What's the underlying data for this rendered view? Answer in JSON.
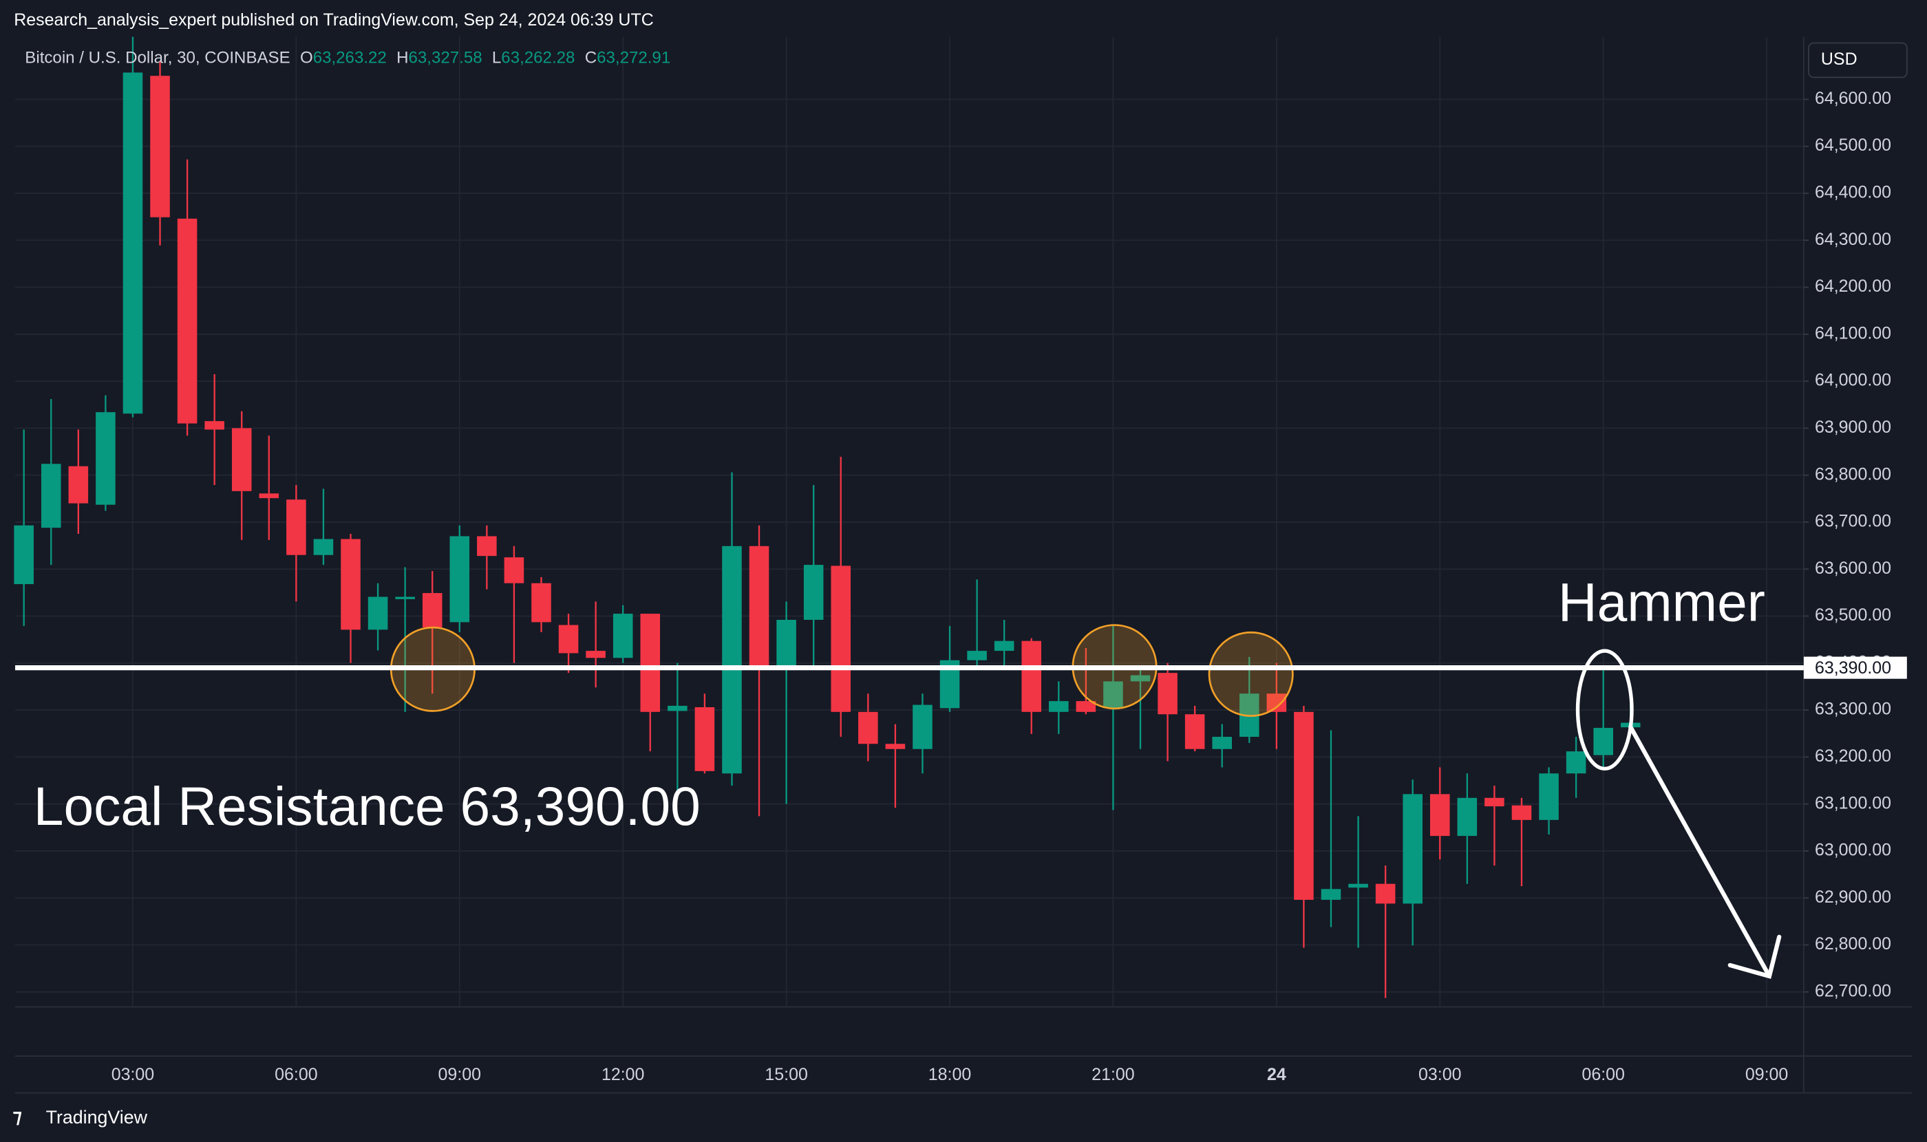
{
  "header": {
    "text": "Research_analysis_expert published on TradingView.com, Sep 24, 2024 06:39 UTC"
  },
  "currency_button": "USD",
  "logo": "TradingView",
  "chart_data": {
    "type": "candlestick",
    "legend": {
      "symbol": "Bitcoin / U.S. Dollar, 30, COINBASE",
      "items": [
        {
          "key": "O",
          "value": 63263.22,
          "label": "63,263.22"
        },
        {
          "key": "H",
          "value": 63327.58,
          "label": "63,327.58"
        },
        {
          "key": "L",
          "value": 63262.28,
          "label": "63,262.28"
        },
        {
          "key": "C",
          "value": 63272.91,
          "label": "63,272.91"
        }
      ]
    },
    "up_color": "#089981",
    "down_color": "#f23645",
    "open": [
      63568,
      63688,
      63819,
      63737,
      63931,
      64650,
      64346,
      63915,
      63900,
      63761,
      63748,
      63630,
      63664,
      63471,
      63536,
      63549,
      63487,
      63670,
      63625,
      63570,
      63481,
      63426,
      63411,
      63505,
      63298,
      63306,
      63165,
      63649,
      63387,
      63492,
      63607,
      63296,
      63228,
      63217,
      63304,
      63406,
      63426,
      63447,
      63296,
      63319,
      63304,
      63361,
      63379,
      63291,
      63217,
      63243,
      63335,
      63296,
      62896,
      62922,
      62930,
      62888,
      63121,
      63032,
      63113,
      63097,
      63066,
      63165,
      63204,
      63263.22
    ],
    "high": [
      63897,
      63962,
      63897,
      63970,
      64733,
      64681,
      64472,
      64015,
      63936,
      63884,
      63779,
      63771,
      63675,
      63570,
      63604,
      63596,
      63693,
      63693,
      63649,
      63583,
      63505,
      63531,
      63523,
      63505,
      63400,
      63335,
      63806,
      63693,
      63531,
      63779,
      63839,
      63335,
      63270,
      63335,
      63479,
      63578,
      63492,
      63453,
      63361,
      63432,
      63479,
      63387,
      63400,
      63309,
      63270,
      63413,
      63400,
      63309,
      63257,
      63074,
      62969,
      63152,
      63178,
      63165,
      63139,
      63113,
      63178,
      63243,
      63387,
      63327.58
    ],
    "low": [
      63479,
      63609,
      63675,
      63724,
      63923,
      64289,
      63884,
      63779,
      63662,
      63662,
      63531,
      63609,
      63400,
      63427,
      63296,
      63335,
      63466,
      63557,
      63400,
      63466,
      63379,
      63348,
      63400,
      63212,
      63113,
      63165,
      63139,
      63074,
      63100,
      63387,
      63243,
      63191,
      63092,
      63165,
      63296,
      63387,
      63387,
      63249,
      63249,
      63291,
      63087,
      63217,
      63191,
      63212,
      63178,
      63230,
      63217,
      62794,
      62838,
      62794,
      62687,
      62799,
      62982,
      62930,
      62969,
      62925,
      63035,
      63113,
      63178,
      63262.28
    ],
    "close": [
      63693,
      63824,
      63740,
      63934,
      64657,
      64349,
      63910,
      63897,
      63766,
      63751,
      63630,
      63664,
      63471,
      63541,
      63541,
      63476,
      63670,
      63628,
      63570,
      63487,
      63421,
      63411,
      63505,
      63296,
      63309,
      63170,
      63649,
      63387,
      63492,
      63609,
      63296,
      63228,
      63217,
      63311,
      63406,
      63426,
      63447,
      63296,
      63319,
      63296,
      63361,
      63374,
      63291,
      63217,
      63243,
      63335,
      63296,
      62896,
      62919,
      62930,
      62888,
      63121,
      63032,
      63113,
      63095,
      63066,
      63165,
      63212,
      63262,
      63272.91
    ],
    "ylim": [
      62668,
      64733
    ],
    "yticks": [
      {
        "value": 64600,
        "label": "64,600.00"
      },
      {
        "value": 64500,
        "label": "64,500.00"
      },
      {
        "value": 64400,
        "label": "64,400.00"
      },
      {
        "value": 64300,
        "label": "64,300.00"
      },
      {
        "value": 64200,
        "label": "64,200.00"
      },
      {
        "value": 64100,
        "label": "64,100.00"
      },
      {
        "value": 64000,
        "label": "64,000.00"
      },
      {
        "value": 63900,
        "label": "63,900.00"
      },
      {
        "value": 63800,
        "label": "63,800.00"
      },
      {
        "value": 63700,
        "label": "63,700.00"
      },
      {
        "value": 63600,
        "label": "63,600.00"
      },
      {
        "value": 63500,
        "label": "63,500.00"
      },
      {
        "value": 63400,
        "label": "63,400.00"
      },
      {
        "value": 63300,
        "label": "63,300.00"
      },
      {
        "value": 63200,
        "label": "63,200.00"
      },
      {
        "value": 63100,
        "label": "63,100.00"
      },
      {
        "value": 63000,
        "label": "63,000.00"
      },
      {
        "value": 62900,
        "label": "62,900.00"
      },
      {
        "value": 62800,
        "label": "62,800.00"
      },
      {
        "value": 62700,
        "label": "62,700.00"
      }
    ],
    "xlim": [
      -0.32,
      65.36
    ],
    "xticks": [
      {
        "value": 4,
        "label": "03:00"
      },
      {
        "value": 10,
        "label": "06:00"
      },
      {
        "value": 16,
        "label": "09:00"
      },
      {
        "value": 22,
        "label": "12:00"
      },
      {
        "value": 28,
        "label": "15:00"
      },
      {
        "value": 34,
        "label": "18:00"
      },
      {
        "value": 40,
        "label": "21:00"
      },
      {
        "value": 46,
        "label": "24"
      },
      {
        "value": 52,
        "label": "03:00"
      },
      {
        "value": 58,
        "label": "06:00"
      },
      {
        "value": 64,
        "label": "09:00"
      }
    ],
    "grid": true,
    "resistance": {
      "value": 63390,
      "label": "63,390.00"
    },
    "annotations": [
      "Local Resistance 63,390.00",
      "Hammer"
    ]
  }
}
